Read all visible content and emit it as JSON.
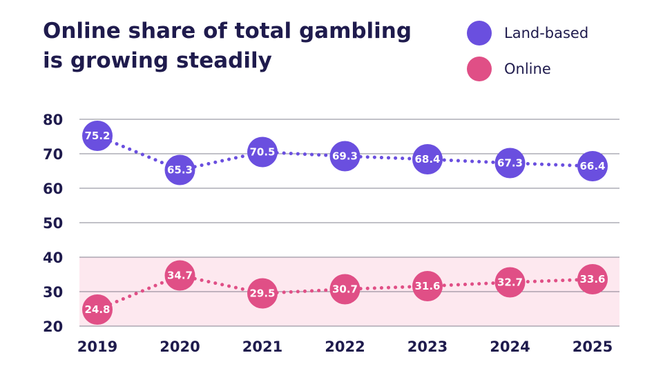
{
  "chart_data": {
    "type": "line",
    "title_lines": [
      "Online share of total gambling",
      "is growing steadily"
    ],
    "categories": [
      "2019",
      "2020",
      "2021",
      "2022",
      "2023",
      "2024",
      "2025"
    ],
    "series": [
      {
        "name": "Land-based",
        "color": "#6a4fdf",
        "values": [
          75.2,
          65.3,
          70.5,
          69.3,
          68.4,
          67.3,
          66.4
        ]
      },
      {
        "name": "Online",
        "color": "#e04f86",
        "values": [
          24.8,
          34.7,
          29.5,
          30.7,
          31.6,
          32.7,
          33.6
        ]
      }
    ],
    "value_labels": {
      "Land-based": [
        "75.2",
        "65.3",
        "70.5",
        "69.3",
        "68.4",
        "67.3",
        "66.4"
      ],
      "Online": [
        "24.8",
        "34.7",
        "29.5",
        "30.7",
        "31.6",
        "32.7",
        "33.6"
      ]
    },
    "yticks": [
      "20",
      "30",
      "40",
      "50",
      "60",
      "70",
      "80"
    ],
    "ylim": [
      20,
      80
    ],
    "highlight_band": {
      "from": 20,
      "to": 40,
      "color": "#fde8ef"
    },
    "grid": true,
    "legend_position": "top-right",
    "colors": {
      "title": "#1f1b4d",
      "grid": "#5a5a6e"
    }
  }
}
